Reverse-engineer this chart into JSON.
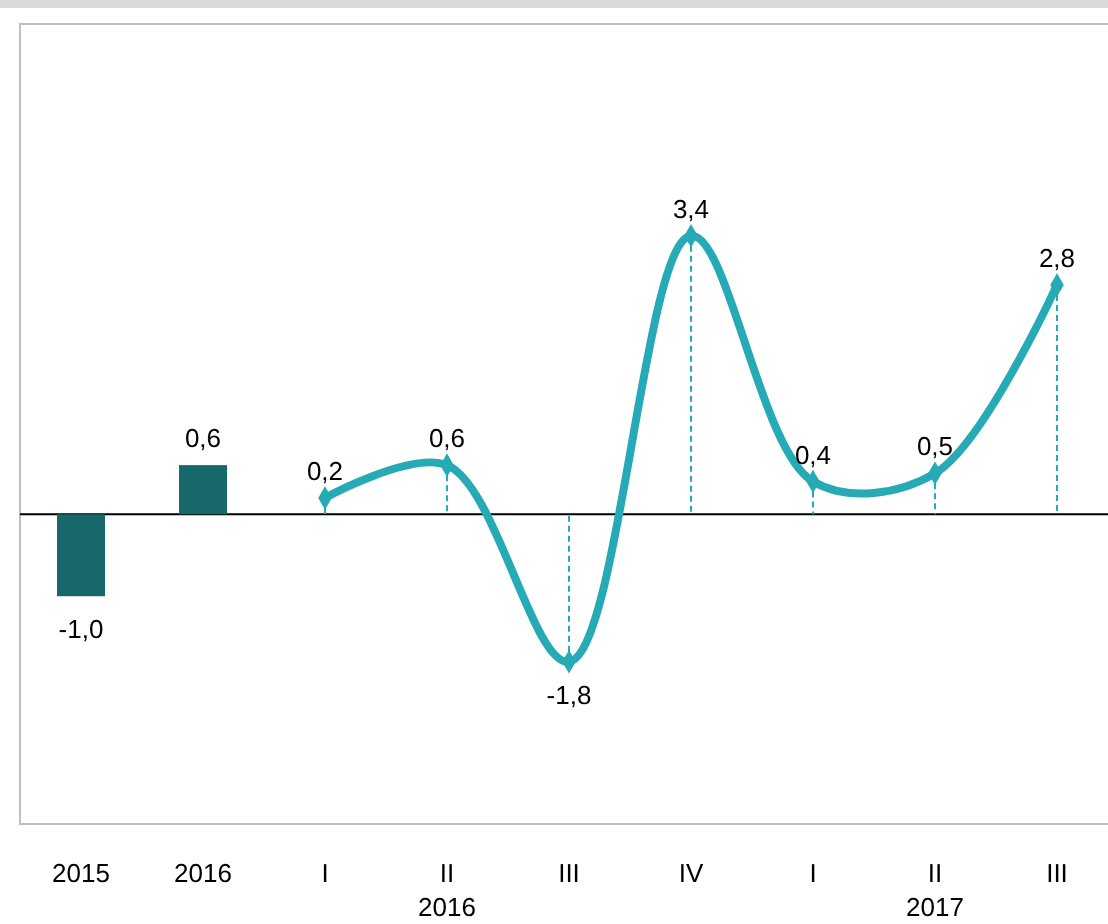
{
  "chart_data": {
    "type": "bar",
    "categories": [
      "2015",
      "2016",
      "I",
      "II",
      "III",
      "IV",
      "I",
      "II",
      "III"
    ],
    "series": [
      {
        "color": "#17686a",
        "values": [
          -1.0,
          0.6,
          null,
          null,
          null,
          null,
          null,
          null,
          null
        ],
        "value_labels": [
          "-1,0",
          "0,6",
          null,
          null,
          null,
          null,
          null,
          null,
          null
        ]
      },
      {
        "type": "line",
        "color": "#26aab5",
        "marker": "diamond",
        "values": [
          null,
          null,
          0.2,
          0.6,
          -1.8,
          3.4,
          0.4,
          0.5,
          2.8
        ],
        "value_labels": [
          null,
          null,
          "0,2",
          "0,6",
          "-1,8",
          "3,4",
          "0,4",
          "0,5",
          "2,8"
        ]
      }
    ],
    "annotations": [
      "2016",
      "2017"
    ]
  }
}
